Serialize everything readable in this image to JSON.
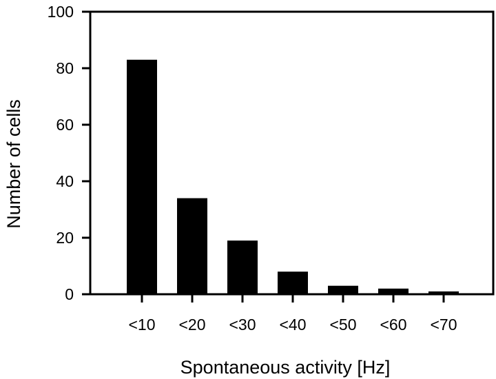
{
  "chart_data": {
    "type": "bar",
    "categories": [
      "<10",
      "<20",
      "<30",
      "<40",
      "<50",
      "<60",
      "<70"
    ],
    "values": [
      83,
      34,
      19,
      8,
      3,
      2,
      1
    ],
    "xlabel": "Spontaneous activity [Hz]",
    "ylabel": "Number of cells",
    "ylim": [
      0,
      100
    ],
    "yticks": [
      0,
      20,
      40,
      60,
      80,
      100
    ],
    "grid": false,
    "legend": "none",
    "bar_color": "#000000",
    "axis_color": "#000000"
  }
}
